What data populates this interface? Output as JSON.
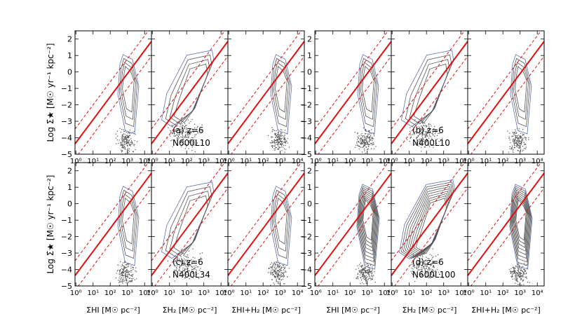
{
  "chart_data": {
    "type": "scatter",
    "panel_groups": [
      {
        "id": "a",
        "label": "(a) $z=6$",
        "label_text": "(a) z=6",
        "model": "N600L10",
        "row": 0,
        "col": 0
      },
      {
        "id": "b",
        "label": "(b) z=6",
        "label_text": "(b) z=6",
        "model": "N400L10",
        "row": 0,
        "col": 1
      },
      {
        "id": "c",
        "label": "(c) z=6",
        "label_text": "(c) z=6",
        "model": "N400L34",
        "row": 1,
        "col": 0
      },
      {
        "id": "d",
        "label": "(d) z=6",
        "label_text": "(d) z=6",
        "model": "N600L100",
        "row": 1,
        "col": 1
      }
    ],
    "ylabel": "Log Σ̇★ [M☉ yr⁻¹ kpc⁻²]",
    "xlabels": [
      "ΣHI [M☉ pc⁻²]",
      "ΣH₂ [M☉ pc⁻²]",
      "ΣHI+H₂ [M☉ pc⁻²]"
    ],
    "xticks": [
      "10⁰",
      "10¹",
      "10²",
      "10³",
      "10⁴"
    ],
    "yticks": [
      "2",
      "1",
      "0",
      "−1",
      "−2",
      "−3",
      "−4",
      "−5"
    ],
    "xlim_log": [
      -0.05,
      4.4
    ],
    "ylim": [
      -5,
      2.5
    ],
    "ks_relation": {
      "slope": 1.4,
      "intercept": -4.3
    },
    "ks_dashed_offsets": [
      0.15,
      -0.15
    ]
  }
}
